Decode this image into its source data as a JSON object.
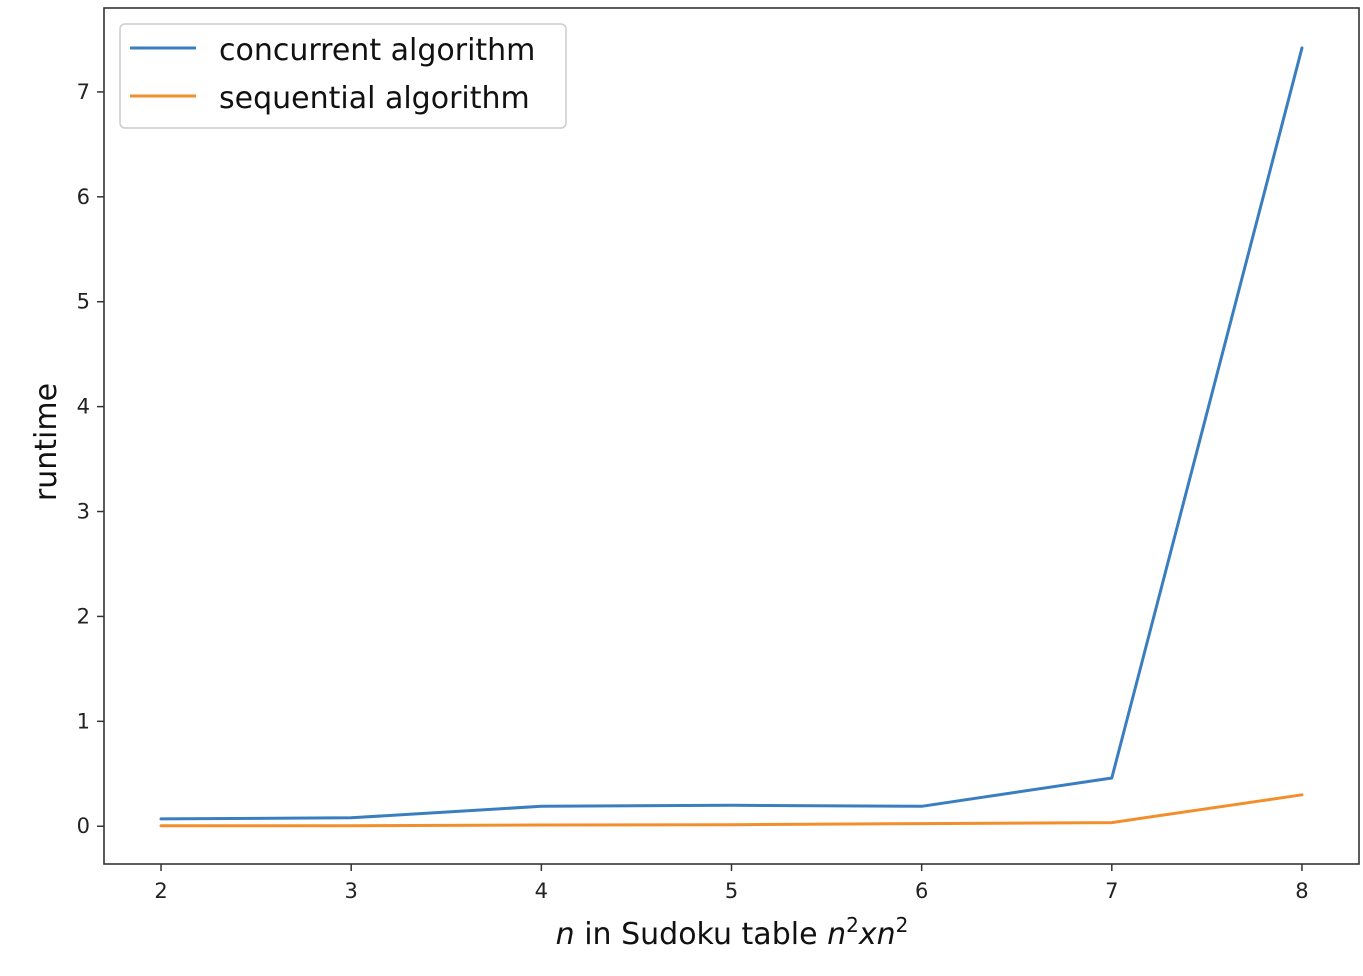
{
  "chart_data": {
    "type": "line",
    "x": [
      2,
      3,
      4,
      5,
      6,
      7,
      8
    ],
    "series": [
      {
        "name": "concurrent algorithm",
        "color": "#3a7ebf",
        "values": [
          0.07,
          0.08,
          0.19,
          0.2,
          0.19,
          0.46,
          7.42
        ]
      },
      {
        "name": "sequential algorithm",
        "color": "#f28e2b",
        "values": [
          0.005,
          0.005,
          0.012,
          0.015,
          0.025,
          0.035,
          0.3
        ]
      }
    ],
    "xticks": [
      "2",
      "3",
      "4",
      "5",
      "6",
      "7",
      "8"
    ],
    "yticks": [
      "0",
      "1",
      "2",
      "3",
      "4",
      "5",
      "6",
      "7"
    ],
    "xlabel_parts": {
      "n": "n",
      "text": " in Sudoku table ",
      "n2a": "n",
      "sup1": "2",
      "x": "x",
      "n2b": "n",
      "sup2": "2"
    },
    "ylabel": "runtime",
    "xlim": [
      1.7,
      8.3
    ],
    "ylim": [
      -0.36,
      7.8
    ],
    "grid": false,
    "legend_position": "top-left"
  }
}
